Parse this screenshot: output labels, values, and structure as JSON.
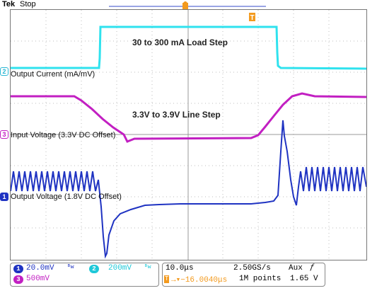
{
  "header": {
    "brand": "Tek",
    "status": "Stop"
  },
  "markers": {
    "trigger": "T"
  },
  "annotations": {
    "load_step": "30 to 300 mA Load Step",
    "line_step": "3.3V to 3.9V Line Step"
  },
  "channels": [
    {
      "id": "2",
      "label": "Output Current (mA/mV)",
      "color": "#2ab7d3"
    },
    {
      "id": "3",
      "label": "Input Voltage (3.3V DC Offset)",
      "color": "#c21fc2"
    },
    {
      "id": "1",
      "label": "Output Voltage (1.8V DC Offset)",
      "color": "#1f33c2"
    }
  ],
  "readout": {
    "ch1_scale": "20.0mV",
    "ch1_bw": "ᴮw",
    "ch2_scale": "200mV",
    "ch2_bw": "ᴮw",
    "ch3_scale": "500mV",
    "timebase": "10.0μs",
    "sample_rate": "2.50GS/s",
    "trigger_source": "Aux",
    "trigger_slope": "ƒ",
    "trigger_position": "→▾−16.0040μs",
    "record_length": "1M points",
    "trigger_level": "1.65 V"
  }
}
